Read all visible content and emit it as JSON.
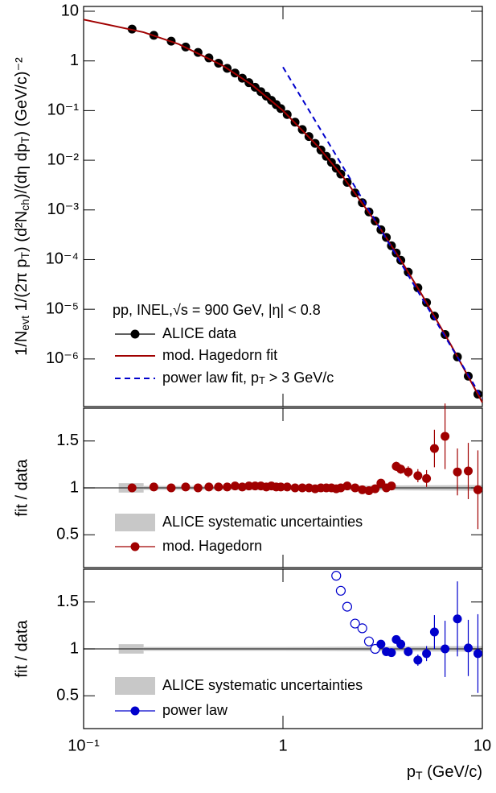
{
  "chart_data": [
    {
      "type": "scatter",
      "ylabel": [
        "1/N",
        "evt",
        " 1/(2π p",
        "T",
        ") (d²N",
        "ch",
        ")/(dη dp",
        "T",
        ") (GeV/c)⁻²"
      ],
      "ylabel_styles": [
        "normal",
        "sub",
        "normal",
        "sub",
        "normal",
        "sub",
        "normal",
        "sub",
        "normal"
      ],
      "annotation": "pp, INEL,√s = 900 GeV, |η| < 0.8",
      "log_x": true,
      "log_y": true,
      "xlim": [
        0.1,
        10
      ],
      "ylim": [
        1.1e-07,
        12.5
      ],
      "yticks": [
        {
          "value": 1e-06,
          "label": "10⁻⁶"
        },
        {
          "value": 1e-05,
          "label": "10⁻⁵"
        },
        {
          "value": 0.0001,
          "label": "10⁻⁴"
        },
        {
          "value": 0.001,
          "label": "10⁻³"
        },
        {
          "value": 0.01,
          "label": "10⁻²"
        },
        {
          "value": 0.1,
          "label": "10⁻¹"
        },
        1,
        10
      ],
      "series": [
        {
          "name": "ALICE data",
          "color": "#000000",
          "style": "markers",
          "x": [
            0.175,
            0.225,
            0.275,
            0.325,
            0.375,
            0.425,
            0.475,
            0.525,
            0.575,
            0.625,
            0.675,
            0.725,
            0.775,
            0.825,
            0.875,
            0.925,
            0.975,
            1.05,
            1.15,
            1.25,
            1.35,
            1.45,
            1.55,
            1.65,
            1.75,
            1.85,
            1.95,
            2.1,
            2.3,
            2.5,
            2.7,
            2.9,
            3.1,
            3.3,
            3.5,
            3.7,
            3.9,
            4.25,
            4.75,
            5.25,
            5.75,
            6.5,
            7.5,
            8.5,
            9.5
          ],
          "values": [
            4.37,
            3.28,
            2.5,
            1.91,
            1.48,
            1.15,
            0.9,
            0.71,
            0.57,
            0.45,
            0.365,
            0.295,
            0.24,
            0.196,
            0.161,
            0.132,
            0.11,
            0.0834,
            0.0585,
            0.0416,
            0.03,
            0.0219,
            0.0161,
            0.012,
            0.0091,
            0.0069,
            0.0053,
            0.0036,
            0.0022,
            0.0014,
            0.00091,
            0.0006,
            0.0004,
            0.00028,
            0.00019,
            0.000136,
            9.7e-05,
            5.6e-05,
            2.7e-05,
            1.37e-05,
            7.3e-06,
            3.1e-06,
            1.1e-06,
            4.5e-07,
            1.95e-07
          ]
        },
        {
          "name": "mod. Hagedorn fit",
          "color": "#a00000",
          "style": "line",
          "dash": false,
          "x": [
            0.1,
            0.2,
            0.3,
            0.5,
            0.7,
            1,
            1.5,
            2,
            3,
            4,
            5,
            7,
            10
          ],
          "values": [
            6.8,
            3.78,
            2.18,
            0.8,
            0.328,
            0.1,
            0.0188,
            0.00465,
            0.00049,
            8.3e-05,
            1.9e-05,
            1.83e-06,
            1.33e-07
          ]
        },
        {
          "name": [
            "power law fit, p",
            "T",
            " > 3 GeV/c"
          ],
          "name_styles": [
            "normal",
            "sub",
            "normal"
          ],
          "color": "#0000cc",
          "style": "line",
          "dash": true,
          "x": [
            1,
            10
          ],
          "values": [
            0.75,
            1.6e-07
          ]
        }
      ]
    },
    {
      "type": "errorbar",
      "ylabel": "fit / data",
      "log_x": true,
      "xlim": [
        0.1,
        10
      ],
      "ylim": [
        0.15,
        1.85
      ],
      "yticks": [
        0.5,
        1,
        1.5
      ],
      "reference": 1,
      "band": {
        "name": "ALICE systematic uncertainties",
        "color": "#c8c8c8",
        "x": [
          0.15,
          0.2,
          0.2,
          1,
          3,
          10
        ],
        "values": [
          0.05,
          0.05,
          0.02,
          0.02,
          0.025,
          0.03
        ]
      },
      "series": [
        {
          "name": "mod. Hagedorn",
          "color": "#a00000",
          "x": [
            0.175,
            0.225,
            0.275,
            0.325,
            0.375,
            0.425,
            0.475,
            0.525,
            0.575,
            0.625,
            0.675,
            0.725,
            0.775,
            0.825,
            0.875,
            0.925,
            0.975,
            1.05,
            1.15,
            1.25,
            1.35,
            1.45,
            1.55,
            1.65,
            1.75,
            1.85,
            1.95,
            2.1,
            2.3,
            2.5,
            2.7,
            2.9,
            3.1,
            3.3,
            3.5,
            3.7,
            3.9,
            4.25,
            4.75,
            5.25,
            5.75,
            6.5,
            7.5,
            8.5,
            9.5
          ],
          "values": [
            1.0,
            1.01,
            1.0,
            1.01,
            1.0,
            1.01,
            1.01,
            1.01,
            1.02,
            1.01,
            1.02,
            1.02,
            1.02,
            1.01,
            1.02,
            1.01,
            1.01,
            1.01,
            1.0,
            1.0,
            1.0,
            0.99,
            1.0,
            1.0,
            1.0,
            0.99,
            1.0,
            1.02,
            1.0,
            0.98,
            0.97,
            0.99,
            1.05,
            1.0,
            1.02,
            1.23,
            1.2,
            1.17,
            1.13,
            1.1,
            1.42,
            1.55,
            1.17,
            1.18,
            0.98
          ],
          "errors": [
            0.01,
            0.01,
            0.01,
            0.01,
            0.01,
            0.01,
            0.01,
            0.01,
            0.01,
            0.01,
            0.01,
            0.01,
            0.01,
            0.01,
            0.01,
            0.01,
            0.01,
            0.01,
            0.01,
            0.01,
            0.01,
            0.01,
            0.01,
            0.01,
            0.01,
            0.01,
            0.01,
            0.01,
            0.01,
            0.01,
            0.02,
            0.02,
            0.03,
            0.03,
            0.04,
            0.05,
            0.05,
            0.06,
            0.07,
            0.09,
            0.2,
            0.35,
            0.25,
            0.3,
            0.42
          ]
        }
      ]
    },
    {
      "type": "errorbar",
      "ylabel": "fit / data",
      "xlabel": [
        "p",
        "T",
        " (GeV/c)"
      ],
      "xlabel_styles": [
        "normal",
        "sub",
        "normal"
      ],
      "log_x": true,
      "xlim": [
        0.1,
        10
      ],
      "ylim": [
        0.15,
        1.85
      ],
      "xticks": [
        {
          "value": 0.1,
          "label": "10⁻¹"
        },
        1,
        10
      ],
      "yticks": [
        0.5,
        1,
        1.5
      ],
      "reference": 1,
      "band": {
        "name": "ALICE systematic uncertainties",
        "color": "#c8c8c8",
        "x": [
          0.15,
          0.2,
          0.2,
          1,
          3,
          10
        ],
        "values": [
          0.05,
          0.05,
          0.02,
          0.02,
          0.025,
          0.03
        ]
      },
      "series": [
        {
          "name": "power law",
          "color": "#0000cc",
          "x": [
            1.85,
            1.95,
            2.1,
            2.3,
            2.5,
            2.7,
            2.9,
            3.1,
            3.3,
            3.5,
            3.7,
            3.9,
            4.25,
            4.75,
            5.25,
            5.75,
            6.5,
            7.5,
            8.5,
            9.5
          ],
          "values": [
            1.78,
            1.62,
            1.45,
            1.27,
            1.22,
            1.08,
            1.0,
            1.05,
            0.97,
            0.96,
            1.1,
            1.05,
            0.97,
            0.88,
            0.95,
            1.18,
            1.0,
            1.32,
            1.01,
            0.95
          ],
          "errors": [
            0.01,
            0.01,
            0.01,
            0.01,
            0.01,
            0.02,
            0.02,
            0.02,
            0.03,
            0.03,
            0.04,
            0.05,
            0.05,
            0.06,
            0.08,
            0.18,
            0.3,
            0.4,
            0.3,
            0.42
          ],
          "markers": [
            "open",
            "open",
            "open",
            "open",
            "open",
            "open",
            "open",
            "filled",
            "filled",
            "filled",
            "filled",
            "filled",
            "filled",
            "filled",
            "filled",
            "filled",
            "filled",
            "filled",
            "filled",
            "filled"
          ]
        }
      ]
    }
  ]
}
